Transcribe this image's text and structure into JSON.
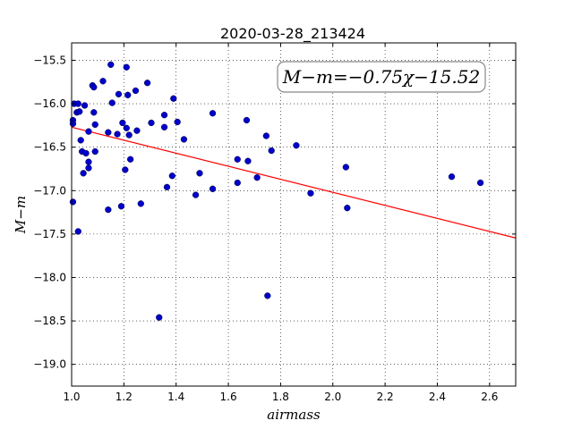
{
  "chart_data": {
    "type": "scatter",
    "title": "2020-03-28_213424",
    "xlabel": "airmass",
    "ylabel": "M−m",
    "xlim": [
      1.0,
      2.7
    ],
    "ylim": [
      -19.25,
      -15.3
    ],
    "xticks": [
      1.0,
      1.2,
      1.4,
      1.6,
      1.8,
      2.0,
      2.2,
      2.4,
      2.6
    ],
    "xtick_labels": [
      "1.0",
      "1.2",
      "1.4",
      "1.6",
      "1.8",
      "2.0",
      "2.2",
      "2.4",
      "2.6"
    ],
    "yticks": [
      -15.5,
      -16.0,
      -16.5,
      -17.0,
      -17.5,
      -18.0,
      -18.5,
      -19.0
    ],
    "ytick_labels": [
      "−15.5",
      "−16.0",
      "−16.5",
      "−17.0",
      "−17.5",
      "−18.0",
      "−18.5",
      "−19.0"
    ],
    "grid": true,
    "annotation": "M−m=−0.75χ−15.52",
    "fit": {
      "slope": -0.75,
      "intercept": -15.52,
      "color": "#ff0000"
    },
    "point_color": "#0000cc",
    "points": [
      [
        1.005,
        -16.19
      ],
      [
        1.005,
        -16.23
      ],
      [
        1.005,
        -17.13
      ],
      [
        1.01,
        -16.0
      ],
      [
        1.02,
        -16.1
      ],
      [
        1.025,
        -16.0
      ],
      [
        1.025,
        -17.47
      ],
      [
        1.03,
        -16.09
      ],
      [
        1.035,
        -16.42
      ],
      [
        1.04,
        -16.55
      ],
      [
        1.045,
        -16.8
      ],
      [
        1.05,
        -16.02
      ],
      [
        1.055,
        -16.57
      ],
      [
        1.065,
        -16.32
      ],
      [
        1.065,
        -16.67
      ],
      [
        1.065,
        -16.74
      ],
      [
        1.08,
        -15.79
      ],
      [
        1.085,
        -15.81
      ],
      [
        1.085,
        -16.1
      ],
      [
        1.09,
        -16.24
      ],
      [
        1.09,
        -16.55
      ],
      [
        1.12,
        -15.74
      ],
      [
        1.14,
        -16.33
      ],
      [
        1.14,
        -17.22
      ],
      [
        1.15,
        -15.55
      ],
      [
        1.155,
        -15.99
      ],
      [
        1.175,
        -16.35
      ],
      [
        1.18,
        -15.89
      ],
      [
        1.19,
        -17.18
      ],
      [
        1.195,
        -16.22
      ],
      [
        1.205,
        -16.76
      ],
      [
        1.21,
        -15.58
      ],
      [
        1.21,
        -16.28
      ],
      [
        1.215,
        -15.9
      ],
      [
        1.22,
        -16.36
      ],
      [
        1.225,
        -16.64
      ],
      [
        1.245,
        -15.85
      ],
      [
        1.25,
        -16.31
      ],
      [
        1.265,
        -17.15
      ],
      [
        1.29,
        -15.76
      ],
      [
        1.305,
        -16.22
      ],
      [
        1.335,
        -18.46
      ],
      [
        1.355,
        -16.13
      ],
      [
        1.355,
        -16.27
      ],
      [
        1.365,
        -16.96
      ],
      [
        1.385,
        -16.83
      ],
      [
        1.39,
        -15.94
      ],
      [
        1.405,
        -16.21
      ],
      [
        1.43,
        -16.41
      ],
      [
        1.475,
        -17.05
      ],
      [
        1.49,
        -16.8
      ],
      [
        1.54,
        -16.11
      ],
      [
        1.54,
        -16.98
      ],
      [
        1.635,
        -16.64
      ],
      [
        1.635,
        -16.91
      ],
      [
        1.67,
        -16.19
      ],
      [
        1.675,
        -16.66
      ],
      [
        1.71,
        -16.85
      ],
      [
        1.745,
        -16.37
      ],
      [
        1.75,
        -18.21
      ],
      [
        1.765,
        -16.54
      ],
      [
        1.86,
        -16.48
      ],
      [
        1.915,
        -17.03
      ],
      [
        2.05,
        -16.73
      ],
      [
        2.055,
        -17.2
      ],
      [
        2.455,
        -16.84
      ],
      [
        2.565,
        -16.91
      ]
    ]
  }
}
